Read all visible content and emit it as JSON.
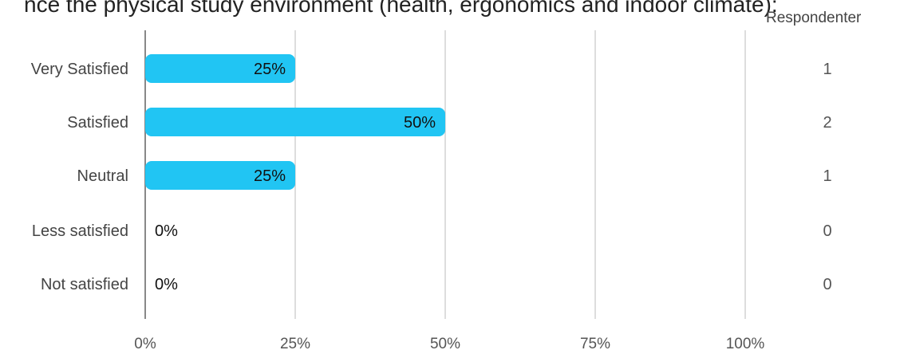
{
  "title_fragment": "nce the physical study environment (health, ergonomics and indoor climate):",
  "respondents_header": "Respondenter",
  "chart_data": {
    "type": "bar",
    "orientation": "horizontal",
    "categories": [
      "Very Satisfied",
      "Satisfied",
      "Neutral",
      "Less satisfied",
      "Not satisfied"
    ],
    "values": [
      25,
      50,
      25,
      0,
      0
    ],
    "value_labels": [
      "25%",
      "50%",
      "25%",
      "0%",
      "0%"
    ],
    "respondents": [
      1,
      2,
      1,
      0,
      0
    ],
    "x_ticks": [
      "0%",
      "25%",
      "50%",
      "75%",
      "100%"
    ],
    "xlim": [
      0,
      100
    ],
    "grid": true,
    "bar_color": "#21c5f3",
    "grid_color": "#bbbbbb"
  }
}
